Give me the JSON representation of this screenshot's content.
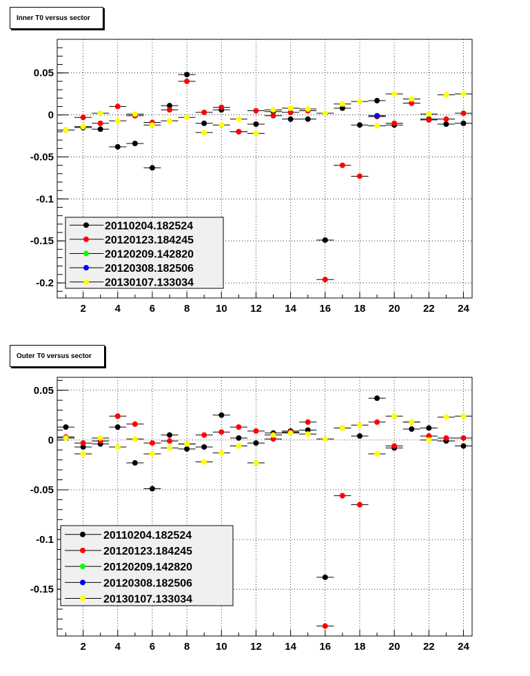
{
  "chart_data": [
    {
      "type": "scatter",
      "title": "Inner T0 versus sector",
      "xlabel": "",
      "ylabel": "",
      "xlim": [
        0.5,
        24.5
      ],
      "ylim": [
        -0.218,
        0.09
      ],
      "xticks": [
        2,
        4,
        6,
        8,
        10,
        12,
        14,
        16,
        18,
        20,
        22,
        24
      ],
      "yticks": [
        0.05,
        0,
        -0.05,
        -0.1,
        -0.15,
        -0.2
      ],
      "ytick_labels": [
        "0.05",
        "0",
        "-0.05",
        "-0.1",
        "-0.15",
        "-0.2"
      ],
      "grid": true,
      "legend_position": "bottom-left",
      "series": [
        {
          "name": "20110204.182524",
          "color": "#000000",
          "x": [
            1,
            2,
            3,
            4,
            5,
            6,
            7,
            8,
            9,
            10,
            11,
            12,
            13,
            14,
            15,
            16,
            17,
            18,
            19,
            20,
            21,
            22,
            23,
            24
          ],
          "y": [
            -0.018,
            -0.015,
            -0.017,
            -0.038,
            -0.034,
            -0.063,
            0.011,
            0.048,
            -0.01,
            0.006,
            -0.02,
            -0.011,
            0.004,
            -0.005,
            -0.005,
            -0.149,
            0.008,
            -0.012,
            0.017,
            -0.012,
            0.014,
            -0.005,
            -0.011,
            -0.01
          ]
        },
        {
          "name": "20120123.184245",
          "color": "#ff0000",
          "x": [
            1,
            2,
            3,
            4,
            5,
            6,
            7,
            8,
            9,
            10,
            11,
            12,
            13,
            14,
            15,
            16,
            17,
            18,
            19,
            20,
            21,
            22,
            23,
            24
          ],
          "y": [
            -0.018,
            -0.003,
            -0.01,
            0.01,
            -0.001,
            -0.009,
            0.006,
            0.04,
            0.003,
            0.009,
            -0.02,
            0.005,
            -0.001,
            0.003,
            0.005,
            -0.196,
            -0.06,
            -0.073,
            -0.002,
            -0.01,
            0.014,
            -0.006,
            -0.005,
            0.002
          ]
        },
        {
          "name": "20120209.142820",
          "color": "#00ff00",
          "x": [],
          "y": []
        },
        {
          "name": "20120308.182506",
          "color": "#0000ff",
          "x": [
            19
          ],
          "y": [
            -0.001
          ]
        },
        {
          "name": "20130107.133034",
          "color": "#ffff00",
          "x": [
            1,
            2,
            3,
            4,
            5,
            6,
            7,
            8,
            9,
            10,
            11,
            12,
            13,
            14,
            15,
            16,
            17,
            18,
            19,
            20,
            21,
            22,
            23,
            24
          ],
          "y": [
            -0.018,
            -0.014,
            0.002,
            -0.007,
            0.001,
            -0.012,
            -0.007,
            -0.003,
            -0.021,
            -0.012,
            -0.005,
            -0.022,
            0.006,
            0.008,
            0.007,
            0.002,
            0.013,
            0.016,
            -0.013,
            0.025,
            0.019,
            0.001,
            0.024,
            0.025
          ]
        }
      ]
    },
    {
      "type": "scatter",
      "title": "Outer T0 versus sector",
      "xlabel": "",
      "ylabel": "",
      "xlim": [
        0.5,
        24.5
      ],
      "ylim": [
        -0.197,
        0.063
      ],
      "xticks": [
        2,
        4,
        6,
        8,
        10,
        12,
        14,
        16,
        18,
        20,
        22,
        24
      ],
      "yticks": [
        0.05,
        0,
        -0.05,
        -0.1,
        -0.15
      ],
      "ytick_labels": [
        "0.05",
        "0",
        "-0.05",
        "-0.1",
        "-0.15"
      ],
      "grid": true,
      "legend_position": "bottom-left",
      "series": [
        {
          "name": "20110204.182524",
          "color": "#000000",
          "x": [
            1,
            2,
            3,
            4,
            5,
            6,
            7,
            8,
            9,
            10,
            11,
            12,
            13,
            14,
            15,
            16,
            17,
            18,
            19,
            20,
            21,
            22,
            23,
            24
          ],
          "y": [
            0.013,
            -0.007,
            -0.004,
            0.013,
            -0.023,
            -0.049,
            0.005,
            -0.009,
            -0.007,
            0.025,
            0.002,
            -0.003,
            0.007,
            0.009,
            0.01,
            -0.138,
            0.012,
            0.004,
            0.042,
            -0.008,
            0.011,
            0.012,
            -0.001,
            -0.006
          ]
        },
        {
          "name": "20120123.184245",
          "color": "#ff0000",
          "x": [
            1,
            2,
            3,
            4,
            5,
            6,
            7,
            8,
            9,
            10,
            11,
            12,
            13,
            14,
            15,
            16,
            17,
            18,
            19,
            20,
            21,
            22,
            23,
            24
          ],
          "y": [
            0.003,
            -0.003,
            -0.001,
            0.024,
            0.016,
            -0.003,
            -0.001,
            -0.004,
            0.005,
            0.008,
            0.013,
            0.009,
            0.001,
            0.008,
            0.018,
            -0.187,
            -0.056,
            -0.065,
            0.018,
            -0.006,
            0.018,
            0.004,
            0.002,
            0.002
          ]
        },
        {
          "name": "20120209.142820",
          "color": "#00ff00",
          "x": [],
          "y": []
        },
        {
          "name": "20120308.182506",
          "color": "#0000ff",
          "x": [],
          "y": []
        },
        {
          "name": "20130107.133034",
          "color": "#ffff00",
          "x": [
            1,
            2,
            3,
            4,
            5,
            6,
            7,
            8,
            9,
            10,
            11,
            12,
            13,
            14,
            15,
            16,
            17,
            18,
            19,
            20,
            21,
            22,
            23,
            24
          ],
          "y": [
            0.002,
            -0.014,
            0.002,
            -0.007,
            0.001,
            -0.014,
            -0.008,
            -0.004,
            -0.022,
            -0.013,
            -0.006,
            -0.023,
            0.005,
            0.007,
            0.006,
            0.001,
            0.012,
            0.015,
            -0.014,
            0.024,
            0.018,
            0.0,
            0.023,
            0.024
          ]
        }
      ]
    }
  ]
}
